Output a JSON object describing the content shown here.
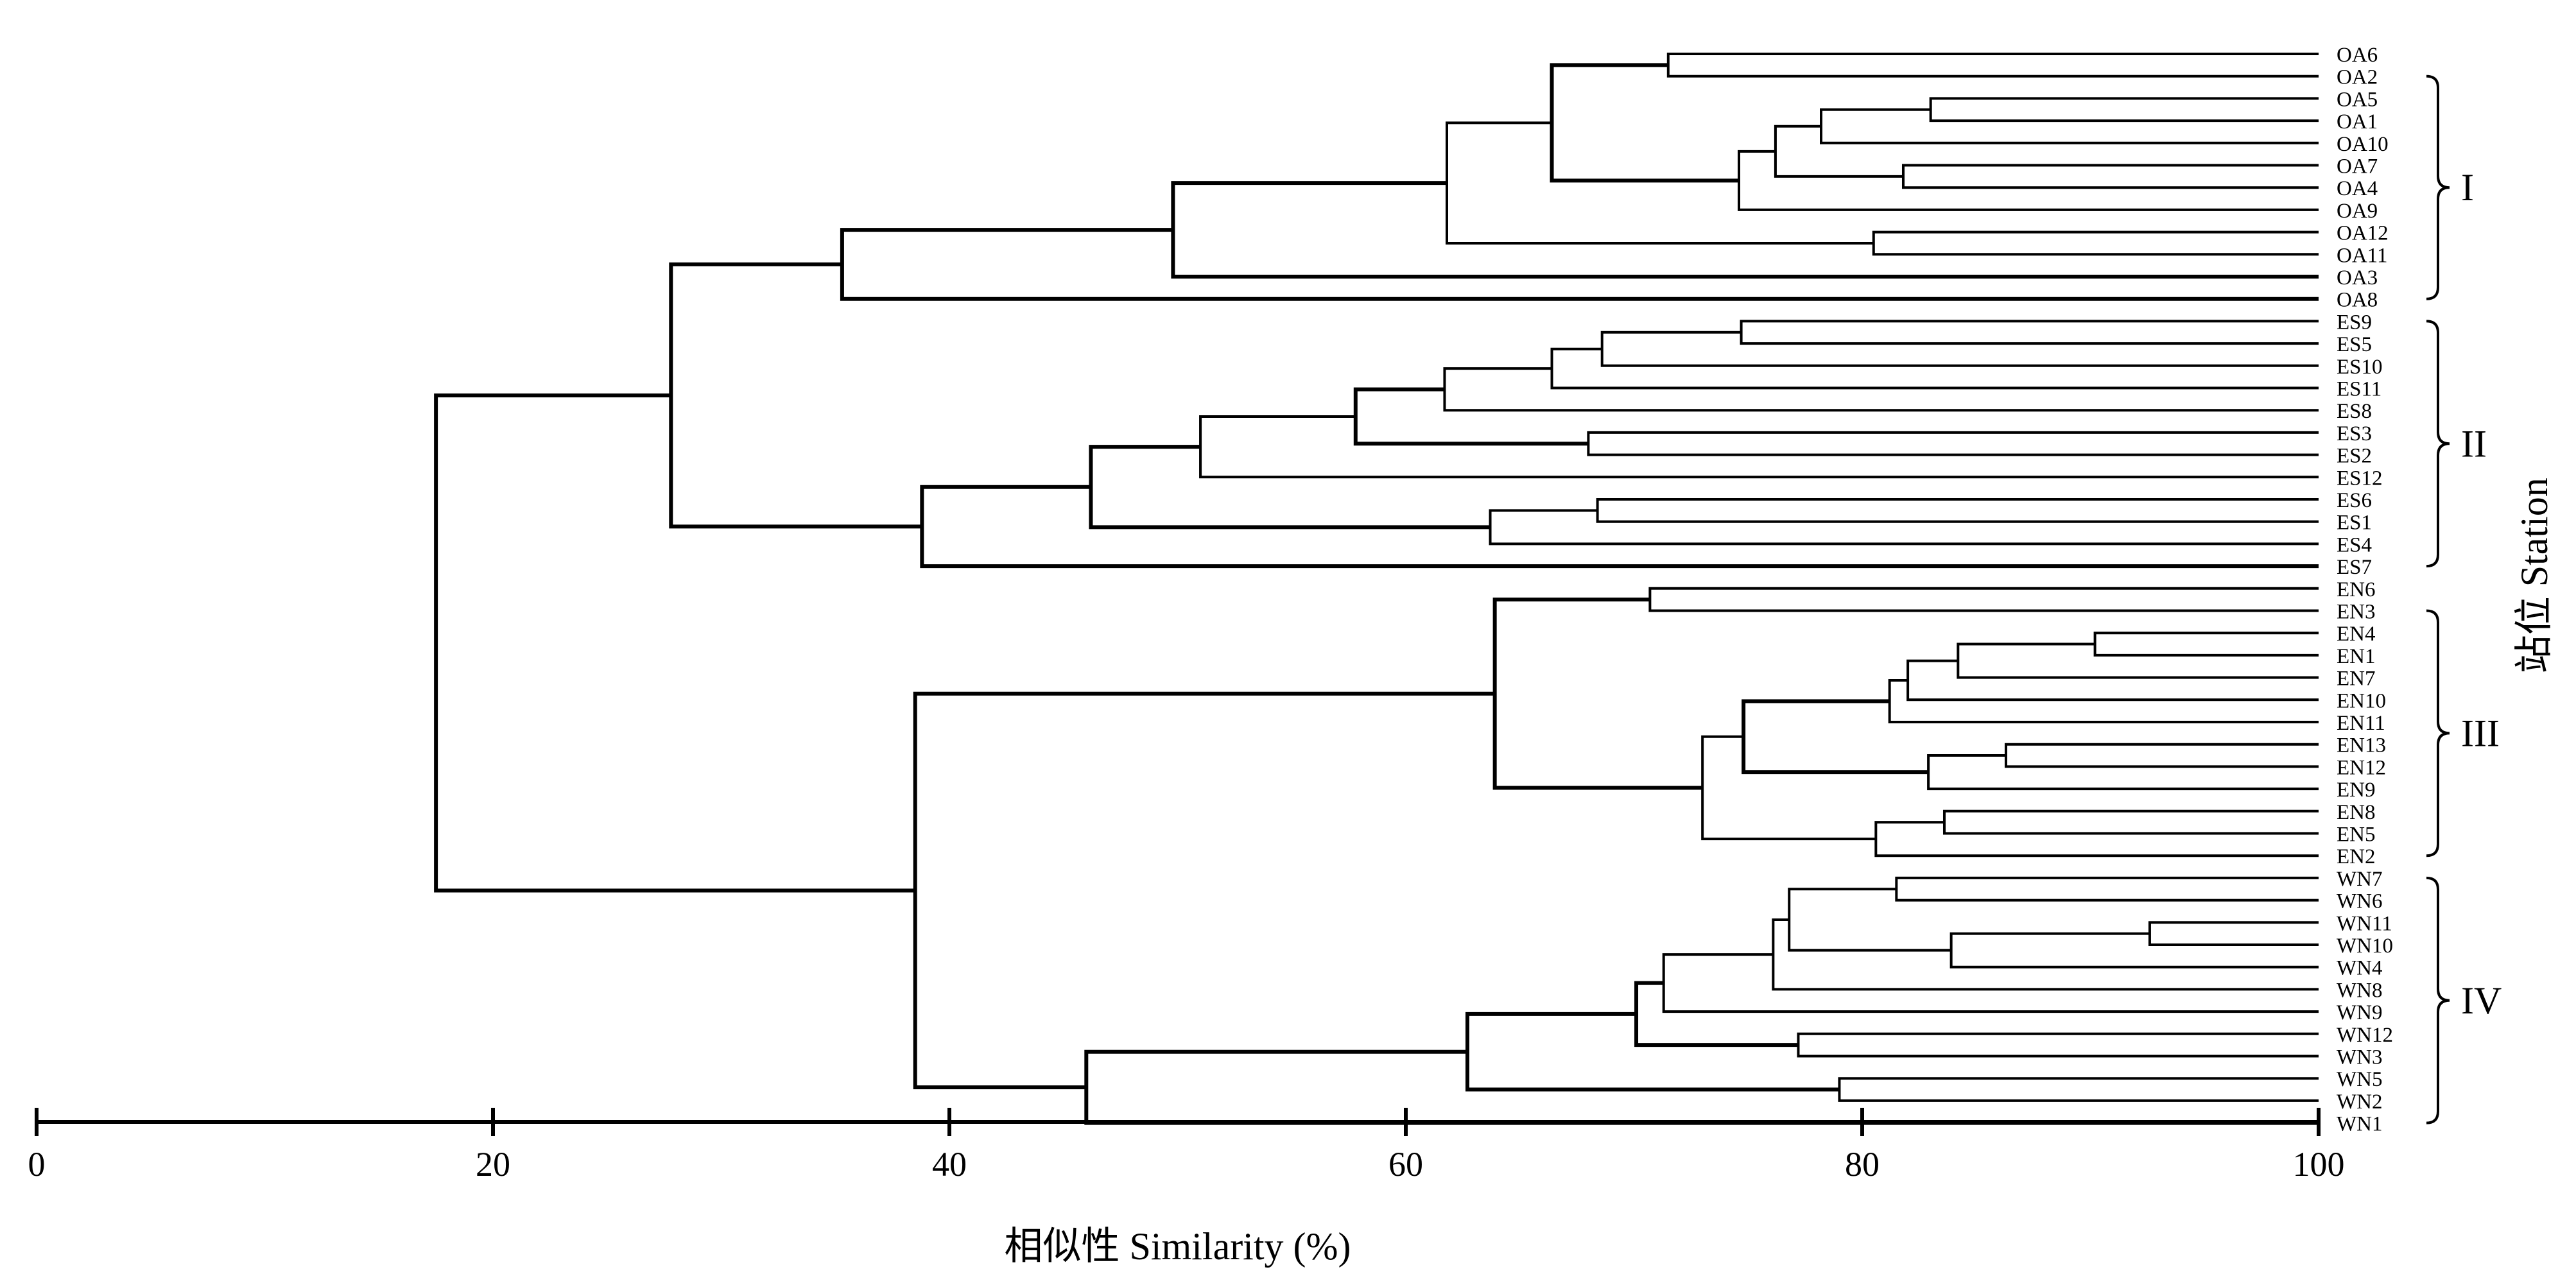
{
  "chart_data": {
    "type": "dendrogram",
    "xlabel": "相似性 Similarity (%)",
    "ylabel": "站位 Station",
    "xlim": [
      0,
      100
    ],
    "xticks": [
      0,
      20,
      40,
      60,
      80,
      100
    ],
    "leaves": [
      "OA6",
      "OA2",
      "OA5",
      "OA1",
      "OA10",
      "OA7",
      "OA4",
      "OA9",
      "OA12",
      "OA11",
      "OA3",
      "OA8",
      "ES9",
      "ES5",
      "ES10",
      "ES11",
      "ES8",
      "ES3",
      "ES2",
      "ES12",
      "ES6",
      "ES1",
      "ES4",
      "ES7",
      "EN6",
      "EN3",
      "EN4",
      "EN1",
      "EN7",
      "EN10",
      "EN11",
      "EN13",
      "EN12",
      "EN9",
      "EN8",
      "EN5",
      "EN2",
      "WN7",
      "WN6",
      "WN11",
      "WN10",
      "WN4",
      "WN8",
      "WN9",
      "WN12",
      "WN3",
      "WN5",
      "WN2",
      "WN1"
    ],
    "merges": [
      {
        "id": "a1",
        "left": "OA6",
        "right": "OA2",
        "similarity": 71.5
      },
      {
        "id": "a2",
        "left": "OA5",
        "right": "OA1",
        "similarity": 83
      },
      {
        "id": "a3",
        "left": "a2",
        "right": "OA10",
        "similarity": 78.2
      },
      {
        "id": "a4",
        "left": "OA7",
        "right": "OA4",
        "similarity": 81.8
      },
      {
        "id": "a5",
        "left": "a3",
        "right": "a4",
        "similarity": 76.2
      },
      {
        "id": "a6",
        "left": "a5",
        "right": "OA9",
        "similarity": 74.6
      },
      {
        "id": "a7",
        "left": "a1",
        "right": "a6",
        "similarity": 66.4
      },
      {
        "id": "a8",
        "left": "OA12",
        "right": "OA11",
        "similarity": 80.5
      },
      {
        "id": "a9",
        "left": "a7",
        "right": "a8",
        "similarity": 61.8
      },
      {
        "id": "a10",
        "left": "a9",
        "right": "OA3",
        "similarity": 49.8
      },
      {
        "id": "a11",
        "left": "a10",
        "right": "OA8",
        "similarity": 35.3
      },
      {
        "id": "b1",
        "left": "ES9",
        "right": "ES5",
        "similarity": 74.7
      },
      {
        "id": "b2",
        "left": "b1",
        "right": "ES10",
        "similarity": 68.6
      },
      {
        "id": "b3",
        "left": "b2",
        "right": "ES11",
        "similarity": 66.4
      },
      {
        "id": "b4",
        "left": "b3",
        "right": "ES8",
        "similarity": 61.7
      },
      {
        "id": "b5",
        "left": "ES3",
        "right": "ES2",
        "similarity": 68
      },
      {
        "id": "b6",
        "left": "b4",
        "right": "b5",
        "similarity": 57.8
      },
      {
        "id": "b7",
        "left": "b6",
        "right": "ES12",
        "similarity": 51
      },
      {
        "id": "b8",
        "left": "ES6",
        "right": "ES1",
        "similarity": 68.4
      },
      {
        "id": "b9",
        "left": "b8",
        "right": "ES4",
        "similarity": 63.7
      },
      {
        "id": "b10",
        "left": "b7",
        "right": "b9",
        "similarity": 46.2
      },
      {
        "id": "b11",
        "left": "b10",
        "right": "ES7",
        "similarity": 38.8
      },
      {
        "id": "ab",
        "left": "a11",
        "right": "b11",
        "similarity": 27.8
      },
      {
        "id": "c1",
        "left": "EN6",
        "right": "EN3",
        "similarity": 70.7
      },
      {
        "id": "c2",
        "left": "EN4",
        "right": "EN1",
        "similarity": 90.2
      },
      {
        "id": "c3",
        "left": "c2",
        "right": "EN7",
        "similarity": 84.2
      },
      {
        "id": "c4",
        "left": "c3",
        "right": "EN10",
        "similarity": 82
      },
      {
        "id": "c5",
        "left": "c4",
        "right": "EN11",
        "similarity": 81.2
      },
      {
        "id": "c6",
        "left": "EN13",
        "right": "EN12",
        "similarity": 86.3
      },
      {
        "id": "c7",
        "left": "c6",
        "right": "EN9",
        "similarity": 82.9
      },
      {
        "id": "c8",
        "left": "c5",
        "right": "c7",
        "similarity": 74.8
      },
      {
        "id": "c9",
        "left": "EN8",
        "right": "EN5",
        "similarity": 83.6
      },
      {
        "id": "c10",
        "left": "c9",
        "right": "EN2",
        "similarity": 80.6
      },
      {
        "id": "c11",
        "left": "c8",
        "right": "c10",
        "similarity": 73
      },
      {
        "id": "c12",
        "left": "c1",
        "right": "c11",
        "similarity": 63.9
      },
      {
        "id": "d1",
        "left": "WN7",
        "right": "WN6",
        "similarity": 81.5
      },
      {
        "id": "d2",
        "left": "WN11",
        "right": "WN10",
        "similarity": 92.6
      },
      {
        "id": "d3",
        "left": "d2",
        "right": "WN4",
        "similarity": 83.9
      },
      {
        "id": "d4",
        "left": "d1",
        "right": "d3",
        "similarity": 76.8
      },
      {
        "id": "d5",
        "left": "d4",
        "right": "WN8",
        "similarity": 76.1
      },
      {
        "id": "d6",
        "left": "d5",
        "right": "WN9",
        "similarity": 71.3
      },
      {
        "id": "d7",
        "left": "WN12",
        "right": "WN3",
        "similarity": 77.2
      },
      {
        "id": "d8",
        "left": "d6",
        "right": "d7",
        "similarity": 70.1
      },
      {
        "id": "d9",
        "left": "WN5",
        "right": "WN2",
        "similarity": 79
      },
      {
        "id": "d10",
        "left": "d8",
        "right": "d9",
        "similarity": 62.7
      },
      {
        "id": "d11",
        "left": "d10",
        "right": "WN1",
        "similarity": 46
      },
      {
        "id": "cd",
        "left": "c12",
        "right": "d11",
        "similarity": 38.5
      },
      {
        "id": "root",
        "left": "ab",
        "right": "cd",
        "similarity": 17.5
      }
    ],
    "groups": [
      {
        "label": "I",
        "first": "OA2",
        "last": "OA8"
      },
      {
        "label": "II",
        "first": "ES9",
        "last": "ES7"
      },
      {
        "label": "III",
        "first": "EN3",
        "last": "EN2"
      },
      {
        "label": "IV",
        "first": "WN7",
        "last": "WN1"
      }
    ]
  }
}
